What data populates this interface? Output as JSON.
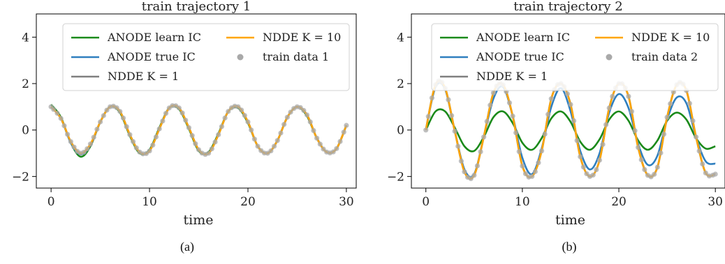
{
  "colors": {
    "anode_learn": "#1a8a1a",
    "anode_true": "#2f7fbf",
    "ndde_k1": "#7f7f7f",
    "ndde_k10": "#ffa500",
    "data": "#a9a9a9"
  },
  "legend_labels": {
    "anode_learn": "ANODE learn IC",
    "anode_true": "ANODE true IC",
    "ndde_k1": "NDDE K = 1",
    "ndde_k10": "NDDE K = 10"
  },
  "chart_data": [
    {
      "type": "line",
      "title": "train trajectory 1",
      "caption": "(a)",
      "xlabel": "time",
      "ylabel": "",
      "xlim": [
        -1.5,
        31
      ],
      "ylim": [
        -2.5,
        5
      ],
      "xticks": [
        0,
        10,
        20,
        30
      ],
      "yticks": [
        -2,
        0,
        2,
        4
      ],
      "ytick_labels": [
        "−2",
        "0",
        "2",
        "4"
      ],
      "legend_loc": "upper right",
      "data_label": "train data 1",
      "t": [
        0,
        1,
        2,
        3,
        4,
        5,
        6,
        7,
        8,
        9,
        10,
        11,
        12,
        13,
        14,
        15,
        16,
        17,
        18,
        19,
        20,
        21,
        22,
        23,
        24,
        25,
        26,
        27,
        28,
        29,
        30
      ],
      "series": [
        {
          "key": "anode_learn",
          "values": [
            1.1,
            0.55,
            -0.55,
            -1.15,
            -0.7,
            0.35,
            1.0,
            0.75,
            -0.25,
            -1.0,
            -0.85,
            0.1,
            0.95,
            0.9,
            0.05,
            -0.9,
            -0.95,
            -0.15,
            0.8,
            0.95,
            0.3,
            -0.7,
            -1.0,
            -0.45,
            0.55,
            1.0,
            0.6,
            -0.35,
            -0.95,
            -0.8,
            0.2
          ]
        },
        {
          "key": "anode_true",
          "values": [
            1.0,
            0.5,
            -0.55,
            -1.05,
            -0.65,
            0.35,
            1.0,
            0.8,
            -0.2,
            -0.95,
            -0.9,
            0.05,
            0.95,
            0.95,
            0.1,
            -0.85,
            -1.0,
            -0.2,
            0.8,
            1.0,
            0.35,
            -0.7,
            -1.0,
            -0.45,
            0.55,
            1.0,
            0.65,
            -0.35,
            -0.95,
            -0.8,
            0.2
          ]
        },
        {
          "key": "ndde_k1",
          "values": [
            1.0,
            0.5,
            -0.5,
            -1.0,
            -0.65,
            0.35,
            1.0,
            0.8,
            -0.2,
            -0.95,
            -0.9,
            0.05,
            0.95,
            0.95,
            0.1,
            -0.85,
            -1.0,
            -0.2,
            0.8,
            1.0,
            0.35,
            -0.7,
            -1.0,
            -0.45,
            0.55,
            1.0,
            0.65,
            -0.35,
            -0.95,
            -0.8,
            0.2
          ]
        },
        {
          "key": "ndde_k10",
          "values": [
            1.0,
            0.5,
            -0.5,
            -1.0,
            -0.6,
            0.35,
            1.0,
            0.8,
            -0.2,
            -0.95,
            -0.9,
            0.05,
            0.95,
            0.95,
            0.1,
            -0.85,
            -1.0,
            -0.2,
            0.8,
            1.0,
            0.35,
            -0.7,
            -1.0,
            -0.45,
            0.55,
            1.0,
            0.65,
            -0.35,
            -0.95,
            -0.8,
            0.2
          ]
        },
        {
          "key": "data",
          "values": [
            1.0,
            0.5,
            -0.5,
            -1.0,
            -0.6,
            0.35,
            1.0,
            0.8,
            -0.2,
            -0.95,
            -0.9,
            0.05,
            0.95,
            0.95,
            0.1,
            -0.85,
            -1.0,
            -0.2,
            0.8,
            1.0,
            0.35,
            -0.7,
            -1.0,
            -0.45,
            0.55,
            1.0,
            0.65,
            -0.35,
            -0.95,
            -0.8,
            0.2
          ]
        }
      ]
    },
    {
      "type": "line",
      "title": "train trajectory 2",
      "caption": "(b)",
      "xlabel": "time",
      "ylabel": "",
      "xlim": [
        -1.5,
        31
      ],
      "ylim": [
        -2.5,
        5
      ],
      "xticks": [
        0,
        10,
        20,
        30
      ],
      "yticks": [
        -2,
        0,
        2,
        4
      ],
      "ytick_labels": [
        "−2",
        "0",
        "2",
        "4"
      ],
      "legend_loc": "upper right",
      "data_label": "train data 2",
      "t": [
        0,
        1,
        2,
        3,
        4,
        5,
        6,
        7,
        8,
        9,
        10,
        11,
        12,
        13,
        14,
        15,
        16,
        17,
        18,
        19,
        20,
        21,
        22,
        23,
        24,
        25,
        26,
        27,
        28,
        29,
        30
      ],
      "series": [
        {
          "key": "anode_learn",
          "values": [
            0.0,
            0.8,
            0.8,
            0.1,
            -0.7,
            -0.9,
            -0.3,
            0.55,
            0.8,
            0.3,
            -0.55,
            -0.85,
            -0.35,
            0.5,
            0.8,
            0.35,
            -0.5,
            -0.85,
            -0.4,
            0.45,
            0.8,
            0.4,
            -0.45,
            -0.85,
            -0.45,
            0.4,
            0.75,
            0.45,
            -0.35,
            -0.8,
            -0.7
          ]
        },
        {
          "key": "anode_true",
          "values": [
            0.0,
            1.85,
            1.75,
            -0.05,
            -1.7,
            -1.9,
            -0.3,
            1.35,
            1.85,
            0.6,
            -1.2,
            -1.9,
            -0.8,
            1.0,
            1.8,
            0.8,
            -0.9,
            -1.7,
            -1.0,
            0.75,
            1.55,
            0.95,
            -0.6,
            -1.5,
            -1.1,
            0.45,
            1.4,
            1.15,
            -0.3,
            -1.35,
            -1.45
          ]
        },
        {
          "key": "ndde_k1",
          "values": [
            0.0,
            1.95,
            1.8,
            -0.05,
            -1.8,
            -1.95,
            -0.3,
            1.6,
            1.95,
            0.6,
            -1.55,
            -2.0,
            -0.9,
            1.35,
            2.0,
            1.1,
            -1.15,
            -2.0,
            -1.3,
            0.95,
            2.0,
            1.45,
            -0.75,
            -1.95,
            -1.6,
            0.55,
            1.95,
            1.7,
            -0.3,
            -1.85,
            -1.9
          ]
        },
        {
          "key": "ndde_k10",
          "values": [
            0.0,
            1.95,
            1.8,
            -0.05,
            -1.8,
            -1.95,
            -0.3,
            1.6,
            1.95,
            0.6,
            -1.55,
            -2.0,
            -0.9,
            1.35,
            2.0,
            1.1,
            -1.15,
            -2.0,
            -1.3,
            0.95,
            2.0,
            1.45,
            -0.75,
            -1.95,
            -1.6,
            0.55,
            1.95,
            1.7,
            -0.3,
            -1.85,
            -1.9
          ]
        },
        {
          "key": "data",
          "values": [
            0.0,
            1.95,
            1.8,
            -0.05,
            -1.8,
            -1.95,
            -0.3,
            1.6,
            1.95,
            0.6,
            -1.55,
            -2.0,
            -0.9,
            1.35,
            2.0,
            1.1,
            -1.15,
            -2.0,
            -1.3,
            0.95,
            2.0,
            1.45,
            -0.75,
            -1.95,
            -1.6,
            0.55,
            1.95,
            1.7,
            -0.3,
            -1.85,
            -1.9
          ]
        }
      ]
    }
  ]
}
